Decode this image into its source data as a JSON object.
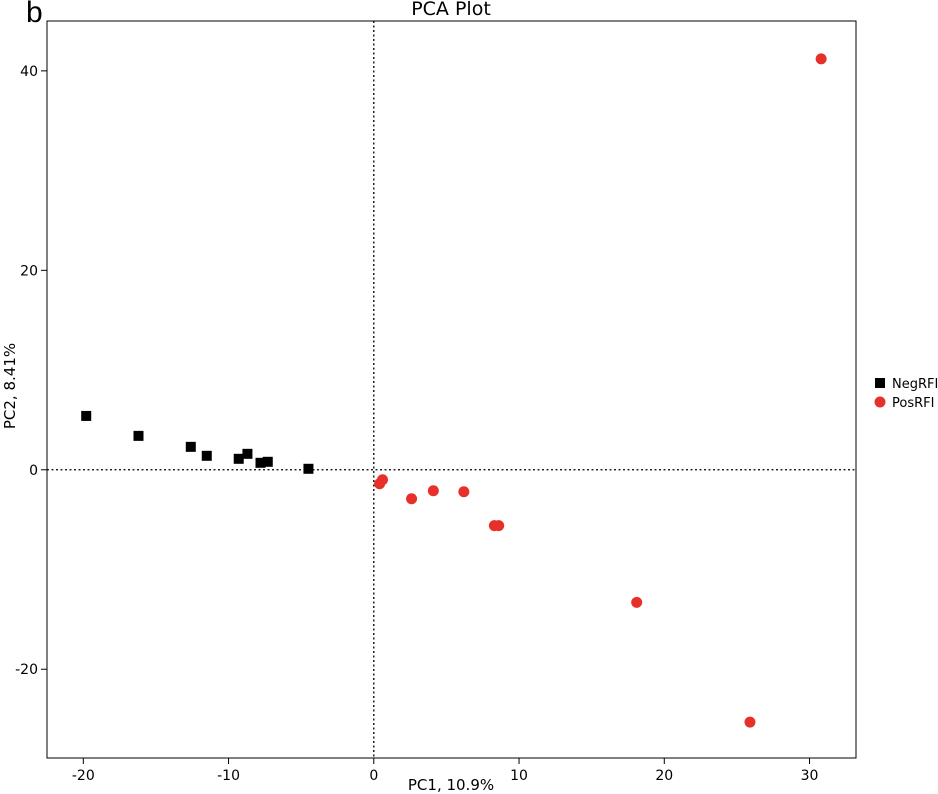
{
  "panel_label": "b",
  "chart_data": {
    "type": "scatter",
    "title": "PCA Plot",
    "xlabel": "PC1, 10.9%",
    "ylabel": "PC2, 8.41%",
    "xlim": [
      -22.5,
      33.2
    ],
    "ylim": [
      -28.9,
      45.0
    ],
    "xticks": [
      -20,
      -10,
      0,
      10,
      20,
      30
    ],
    "yticks": [
      -20,
      0,
      20,
      40
    ],
    "xtick_labels": [
      "-20",
      "-10",
      "0",
      "10",
      "20",
      "30"
    ],
    "ytick_labels": [
      "-20",
      "0",
      "20",
      "40"
    ],
    "reference_lines": {
      "x": 0,
      "y": 0,
      "style": "dotted"
    },
    "grid": false,
    "legend_position": "right",
    "series": [
      {
        "name": "NegRFI",
        "color": "#000000",
        "marker": "square",
        "points": [
          [
            -19.8,
            5.4
          ],
          [
            -16.2,
            3.4
          ],
          [
            -12.6,
            2.3
          ],
          [
            -11.5,
            1.4
          ],
          [
            -9.3,
            1.1
          ],
          [
            -8.7,
            1.6
          ],
          [
            -7.8,
            0.7
          ],
          [
            -7.3,
            0.8
          ],
          [
            -4.5,
            0.1
          ]
        ]
      },
      {
        "name": "PosRFI",
        "color": "#e8302a",
        "marker": "circle",
        "points": [
          [
            30.8,
            41.2
          ],
          [
            0.4,
            -1.4
          ],
          [
            0.6,
            -1.0
          ],
          [
            2.6,
            -2.9
          ],
          [
            4.1,
            -2.1
          ],
          [
            6.2,
            -2.2
          ],
          [
            8.3,
            -5.6
          ],
          [
            8.6,
            -5.6
          ],
          [
            18.1,
            -13.3
          ],
          [
            25.9,
            -25.3
          ]
        ]
      }
    ]
  }
}
